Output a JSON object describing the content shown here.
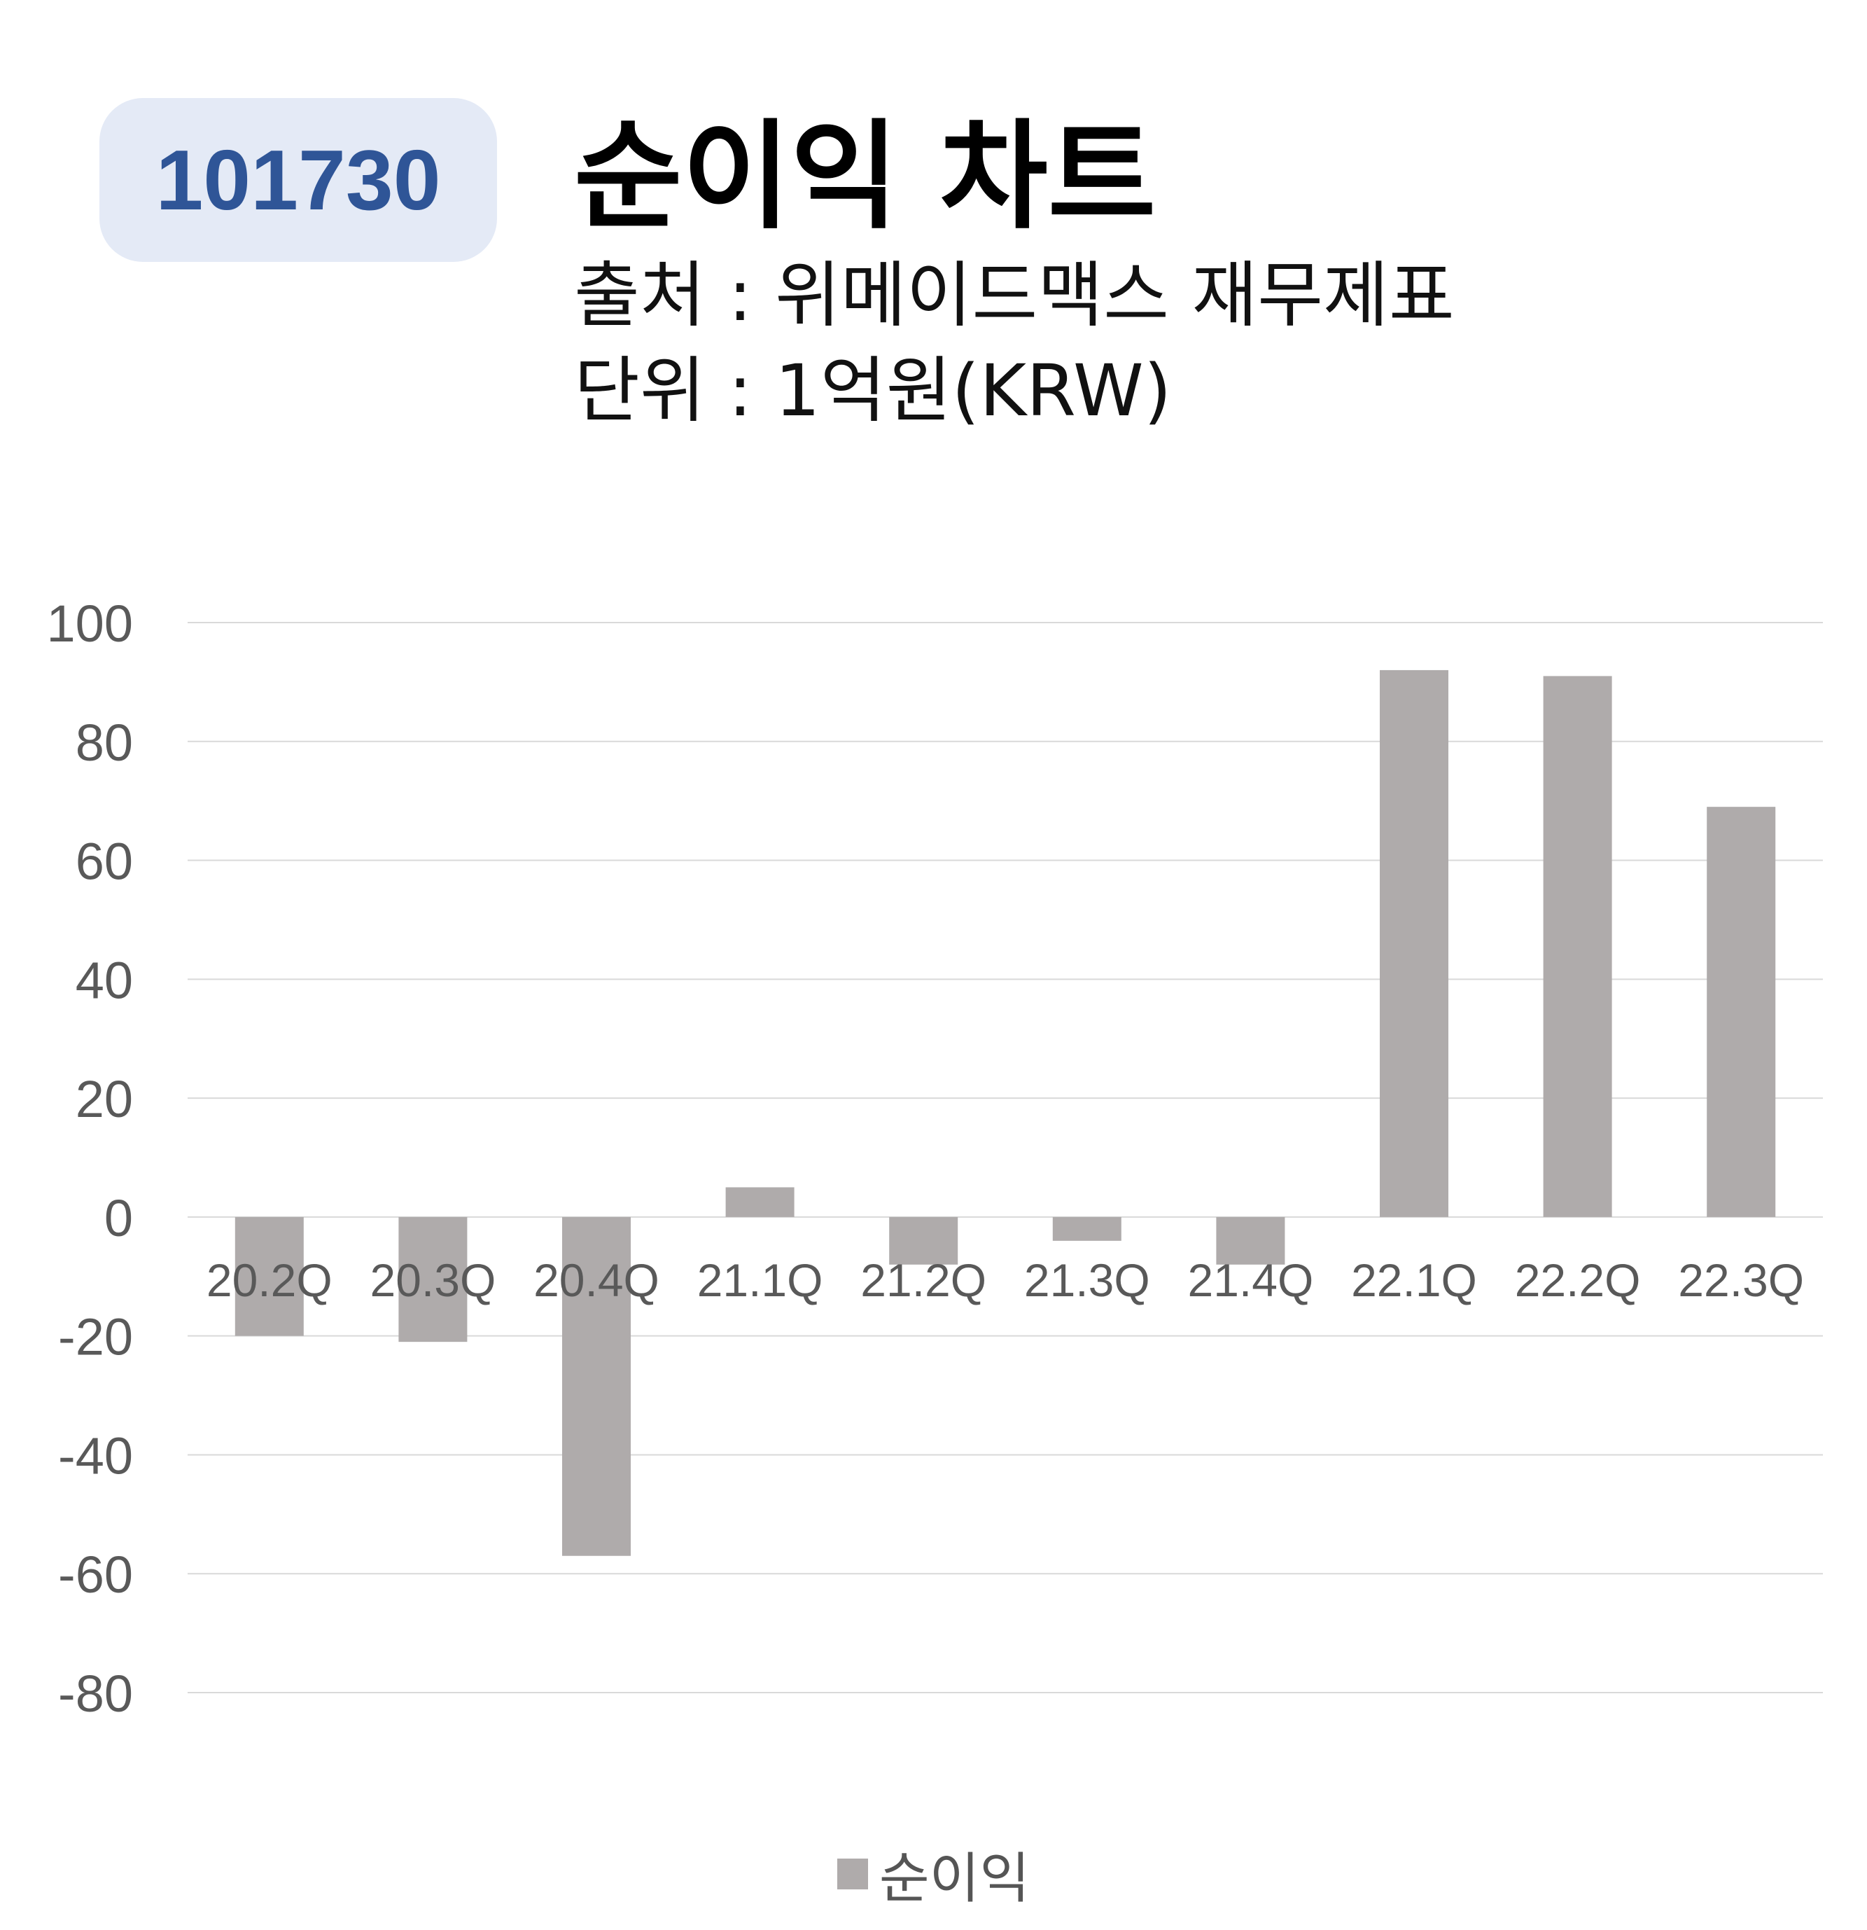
{
  "badge": {
    "code": "101730"
  },
  "header": {
    "title": "순이익 차트",
    "source": "출처 : 위메이드맥스 재무제표",
    "unit": "단위 : 1억원(KRW)"
  },
  "colors": {
    "bar": "#afabab",
    "grid": "#d9d9d9",
    "tick": "#595959",
    "badge_text": "#2f5597"
  },
  "chart_data": {
    "type": "bar",
    "categories": [
      "20.2Q",
      "20.3Q",
      "20.4Q",
      "21.1Q",
      "21.2Q",
      "21.3Q",
      "21.4Q",
      "22.1Q",
      "22.2Q",
      "22.3Q"
    ],
    "series": [
      {
        "name": "순이익",
        "values": [
          -20,
          -21,
          -57,
          5,
          -8,
          -4,
          -8,
          92,
          91,
          69
        ]
      }
    ],
    "y_ticks": [
      "100",
      "80",
      "60",
      "40",
      "20",
      "0",
      "-20",
      "-40",
      "-60",
      "-80"
    ],
    "ylim": [
      -80,
      100
    ],
    "grid": true,
    "legend_position": "bottom"
  }
}
